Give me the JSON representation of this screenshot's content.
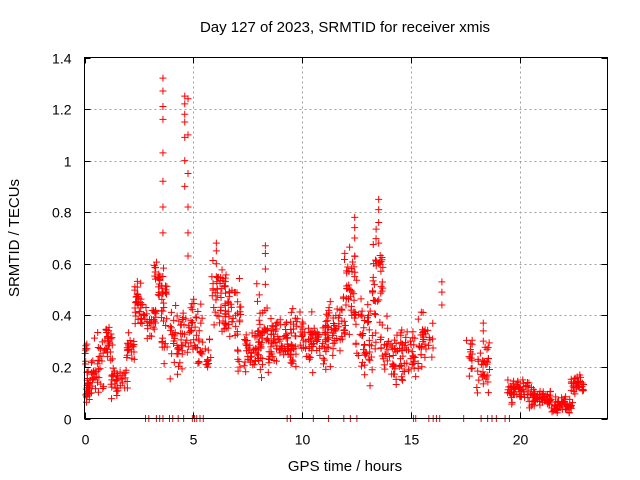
{
  "chart_data": {
    "type": "scatter",
    "title": "Day 127 of 2023, SRMTID for receiver xmis",
    "xlabel": "GPS time / hours",
    "ylabel": "SRMTID / TECUs",
    "xlim": [
      0,
      24
    ],
    "ylim": [
      0,
      1.4
    ],
    "grid": true,
    "x_ticks": [
      "0",
      "5",
      "10",
      "15",
      "20"
    ],
    "y_ticks": [
      "0",
      "0.2",
      "0.4",
      "0.6",
      "0.8",
      "1",
      "1.2",
      "1.4"
    ],
    "series": [
      {
        "name": "SRMTID",
        "color": "#ff0000",
        "marker": "+",
        "segments": [
          {
            "t": [
              0.0,
              0.3
            ],
            "base": 0.12,
            "spread": 0.06,
            "n": 26,
            "seed": 11
          },
          {
            "t": [
              0.0,
              0.2
            ],
            "base": 0.26,
            "spread": 0.05,
            "n": 8,
            "seed": 12
          },
          {
            "t": [
              0.3,
              0.9
            ],
            "base": 0.2,
            "spread": 0.09,
            "n": 38,
            "seed": 13
          },
          {
            "t": [
              0.9,
              1.3
            ],
            "base": 0.3,
            "spread": 0.07,
            "n": 28,
            "seed": 14
          },
          {
            "t": [
              1.2,
              2.0
            ],
            "base": 0.15,
            "spread": 0.06,
            "n": 36,
            "seed": 15
          },
          {
            "t": [
              1.9,
              2.3
            ],
            "base": 0.27,
            "spread": 0.05,
            "n": 22,
            "seed": 16
          },
          {
            "t": [
              2.3,
              2.8
            ],
            "base": 0.44,
            "spread": 0.11,
            "n": 36,
            "seed": 17
          },
          {
            "t": [
              2.8,
              3.3
            ],
            "base": 0.38,
            "spread": 0.06,
            "n": 26,
            "seed": 18
          },
          {
            "t": [
              3.2,
              3.6
            ],
            "base": 0.55,
            "spread": 0.06,
            "n": 22,
            "seed": 19
          },
          {
            "t": [
              3.5,
              3.8
            ],
            "base": 0.4,
            "spread": 0.16,
            "n": 26,
            "seed": 20
          },
          {
            "t": [
              3.9,
              4.8
            ],
            "base": 0.3,
            "spread": 0.12,
            "n": 50,
            "seed": 21
          },
          {
            "t": [
              4.8,
              5.4
            ],
            "base": 0.38,
            "spread": 0.12,
            "n": 30,
            "seed": 22
          },
          {
            "t": [
              5.2,
              5.8
            ],
            "base": 0.25,
            "spread": 0.06,
            "n": 22,
            "seed": 23
          },
          {
            "t": [
              5.8,
              6.5
            ],
            "base": 0.48,
            "spread": 0.12,
            "n": 44,
            "seed": 24
          },
          {
            "t": [
              6.4,
              7.2
            ],
            "base": 0.42,
            "spread": 0.1,
            "n": 42,
            "seed": 25
          },
          {
            "t": [
              7.0,
              8.0
            ],
            "base": 0.25,
            "spread": 0.08,
            "n": 48,
            "seed": 26
          },
          {
            "t": [
              7.8,
              8.6
            ],
            "base": 0.35,
            "spread": 0.14,
            "n": 46,
            "seed": 27
          },
          {
            "t": [
              8.4,
              9.5
            ],
            "base": 0.3,
            "spread": 0.1,
            "n": 56,
            "seed": 28
          },
          {
            "t": [
              9.2,
              10.5
            ],
            "base": 0.3,
            "spread": 0.1,
            "n": 60,
            "seed": 29
          },
          {
            "t": [
              10.3,
              11.2
            ],
            "base": 0.3,
            "spread": 0.09,
            "n": 44,
            "seed": 30
          },
          {
            "t": [
              11.0,
              12.0
            ],
            "base": 0.35,
            "spread": 0.12,
            "n": 50,
            "seed": 31
          },
          {
            "t": [
              11.9,
              12.5
            ],
            "base": 0.5,
            "spread": 0.16,
            "n": 40,
            "seed": 32
          },
          {
            "t": [
              12.4,
              13.2
            ],
            "base": 0.3,
            "spread": 0.12,
            "n": 44,
            "seed": 33
          },
          {
            "t": [
              13.2,
              13.7
            ],
            "base": 0.5,
            "spread": 0.2,
            "n": 40,
            "seed": 34
          },
          {
            "t": [
              13.6,
              14.6
            ],
            "base": 0.25,
            "spread": 0.1,
            "n": 50,
            "seed": 35
          },
          {
            "t": [
              14.5,
              15.2
            ],
            "base": 0.25,
            "spread": 0.09,
            "n": 36,
            "seed": 36
          },
          {
            "t": [
              15.3,
              16.0
            ],
            "base": 0.3,
            "spread": 0.1,
            "n": 36,
            "seed": 37
          },
          {
            "t": [
              17.5,
              17.8
            ],
            "base": 0.24,
            "spread": 0.08,
            "n": 14,
            "seed": 38
          },
          {
            "t": [
              18.0,
              18.6
            ],
            "base": 0.2,
            "spread": 0.09,
            "n": 34,
            "seed": 39
          },
          {
            "t": [
              19.4,
              20.4
            ],
            "base": 0.11,
            "spread": 0.04,
            "n": 50,
            "seed": 40
          },
          {
            "t": [
              20.4,
              21.4
            ],
            "base": 0.08,
            "spread": 0.035,
            "n": 54,
            "seed": 41
          },
          {
            "t": [
              21.4,
              22.4
            ],
            "base": 0.05,
            "spread": 0.03,
            "n": 54,
            "seed": 42
          },
          {
            "t": [
              22.3,
              22.9
            ],
            "base": 0.13,
            "spread": 0.03,
            "n": 32,
            "seed": 43
          }
        ],
        "columns": [
          {
            "x": 3.6,
            "y": [
              0.72,
              0.82,
              0.92,
              1.03,
              1.16,
              1.21,
              1.27,
              1.32
            ]
          },
          {
            "x": 4.6,
            "y": [
              0.9,
              1.0,
              1.09,
              1.15,
              1.18,
              1.22,
              1.25
            ]
          },
          {
            "x": 4.75,
            "y": [
              0.63,
              0.72,
              0.82,
              0.95,
              1.1,
              1.24
            ]
          },
          {
            "x": 13.5,
            "y": [
              0.6,
              0.68,
              0.76,
              0.81,
              0.85
            ]
          },
          {
            "x": 12.4,
            "y": [
              0.55,
              0.63,
              0.7,
              0.74,
              0.78
            ]
          },
          {
            "x": 8.3,
            "y": [
              0.52,
              0.58,
              0.64,
              0.67
            ]
          },
          {
            "x": 6.05,
            "y": [
              0.55,
              0.6,
              0.65,
              0.68
            ]
          },
          {
            "x": 16.4,
            "y": [
              0.44,
              0.49,
              0.53
            ]
          },
          {
            "x": 18.3,
            "y": [
              0.3,
              0.34,
              0.37
            ]
          }
        ],
        "zeros": [
          2.8,
          2.95,
          3.3,
          3.45,
          3.6,
          3.9,
          4.05,
          4.3,
          4.55,
          4.95,
          5.05,
          5.15,
          5.3,
          5.45,
          9.3,
          9.45,
          10.5,
          11.2,
          11.9,
          12.2,
          12.5,
          15.1,
          15.2,
          15.8,
          16.0,
          16.15,
          16.3,
          17.4,
          18.2,
          18.5,
          18.7,
          18.9,
          19.3,
          19.5
        ]
      }
    ]
  }
}
